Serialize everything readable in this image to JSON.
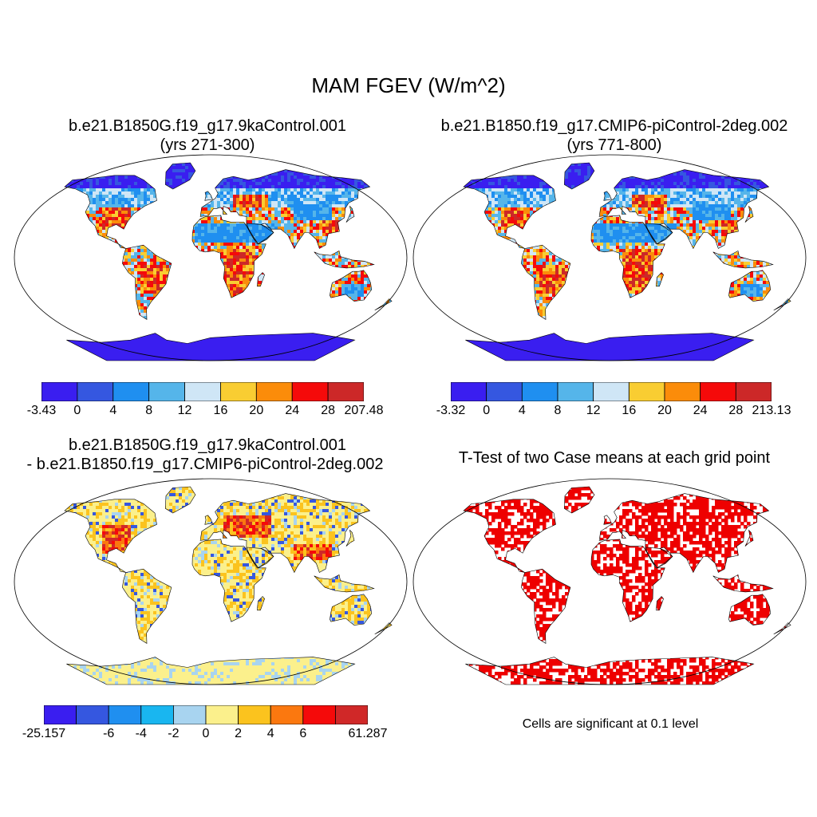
{
  "main_title": "MAM FGEV (W/m^2)",
  "colors": {
    "abs_scale": [
      "#3a1ef0",
      "#3557e0",
      "#1f8ff0",
      "#55b5ea",
      "#cfe6f6",
      "#f9cd32",
      "#fb8c0a",
      "#f50a0a",
      "#cc2828"
    ],
    "diff_scale": [
      "#3a1ef0",
      "#3557e0",
      "#1f8ff0",
      "#19b6f0",
      "#a8d4f0",
      "#fbf08c",
      "#fbc31e",
      "#fb780f",
      "#f50a0a",
      "#d02828"
    ],
    "significance": "#ee0000",
    "ocean": "#ffffff",
    "outline": "#000000"
  },
  "panels": {
    "top_left": {
      "title_line1": "b.e21.B1850G.f19_g17.9kaControl.001",
      "title_line2": "(yrs 271-300)",
      "colorbar_labels": [
        "-3.43",
        "0",
        "4",
        "8",
        "12",
        "16",
        "20",
        "24",
        "28",
        "207.48"
      ]
    },
    "top_right": {
      "title_line1": "b.e21.B1850.f19_g17.CMIP6-piControl-2deg.002",
      "title_line2": "(yrs 771-800)",
      "colorbar_labels": [
        "-3.32",
        "0",
        "4",
        "8",
        "12",
        "16",
        "20",
        "24",
        "28",
        "213.13"
      ]
    },
    "bottom_left": {
      "title_line1": "b.e21.B1850G.f19_g17.9kaControl.001",
      "title_line2": "- b.e21.B1850.f19_g17.CMIP6-piControl-2deg.002",
      "colorbar_labels": [
        "-25.157",
        "",
        "-6",
        "-4",
        "-2",
        "0",
        "2",
        "4",
        "6",
        "",
        "61.287"
      ]
    },
    "bottom_right": {
      "title_line1": "T-Test of two Case means at each grid point",
      "note": "Cells are significant at 0.1 level"
    }
  }
}
